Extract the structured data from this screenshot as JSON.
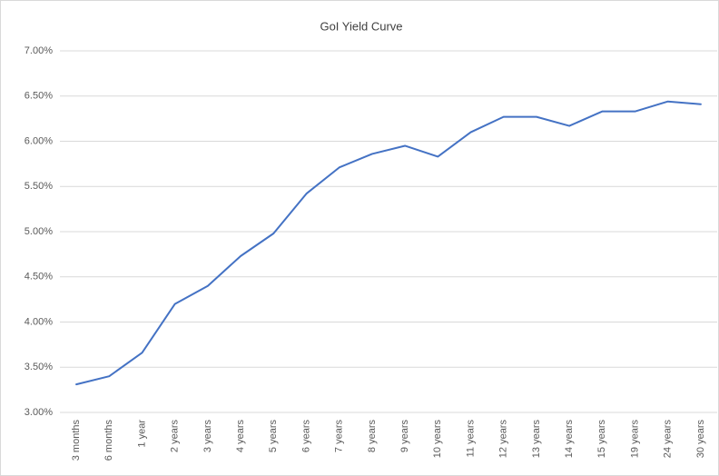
{
  "chart_data": {
    "type": "line",
    "title": "GoI Yield Curve",
    "categories": [
      "3 months",
      "6 months",
      "1 year",
      "2 years",
      "3 years",
      "4 years",
      "5 years",
      "6 years",
      "7 years",
      "8 years",
      "9 years",
      "10 years",
      "11 years",
      "12 years",
      "13 years",
      "14 years",
      "15 years",
      "19 years",
      "24 years",
      "30 years"
    ],
    "values": [
      3.31,
      3.4,
      3.66,
      4.2,
      4.4,
      4.73,
      4.98,
      5.42,
      5.71,
      5.86,
      5.95,
      5.83,
      6.1,
      6.27,
      6.27,
      6.17,
      6.33,
      6.33,
      6.44,
      6.41
    ],
    "color": "#4472c4",
    "ylim": [
      3,
      7
    ],
    "yticks": [
      {
        "value": 3,
        "label": "3.00%"
      },
      {
        "value": 3.5,
        "label": "3.50%"
      },
      {
        "value": 4,
        "label": "4.00%"
      },
      {
        "value": 4.5,
        "label": "4.50%"
      },
      {
        "value": 5,
        "label": "5.00%"
      },
      {
        "value": 5.5,
        "label": "5.50%"
      },
      {
        "value": 6,
        "label": "6.00%"
      },
      {
        "value": 6.5,
        "label": "6.50%"
      },
      {
        "value": 7,
        "label": "7.00%"
      }
    ],
    "grid": true
  }
}
